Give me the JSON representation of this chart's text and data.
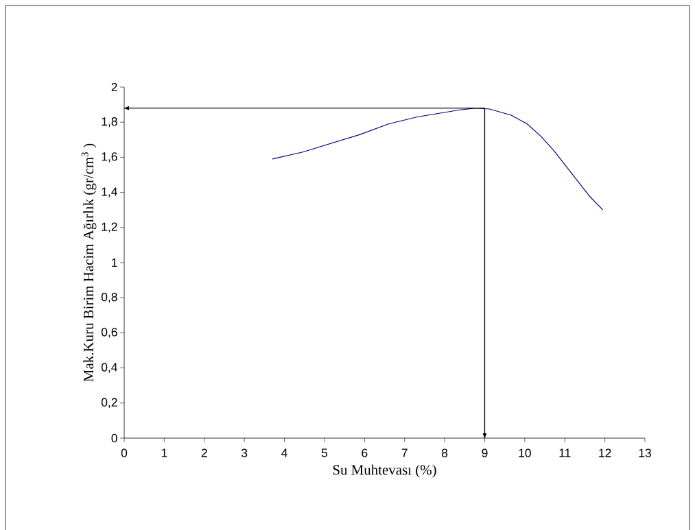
{
  "chart_data": {
    "type": "line",
    "xlabel": "Su Muhtevası (%)",
    "ylabel": "Mak.Kuru Birim Hacim Ağırlık (gr/cm$^{3}$ )",
    "x": [
      3.7,
      4.46,
      5.89,
      6.6,
      7.32,
      8.38,
      8.78,
      9.12,
      9.66,
      10.06,
      10.4,
      10.72,
      11.61,
      11.95
    ],
    "series": [
      {
        "color": "#000080",
        "values": [
          1.59,
          1.63,
          1.73,
          1.79,
          1.83,
          1.87,
          1.88,
          1.875,
          1.84,
          1.79,
          1.72,
          1.64,
          1.38,
          1.3
        ]
      }
    ],
    "xlim": [
      0,
      13
    ],
    "xticks": [
      0,
      1,
      2,
      3,
      4,
      5,
      6,
      7,
      8,
      9,
      10,
      11,
      12,
      13
    ],
    "ylim": [
      0,
      2
    ],
    "yticks": [
      {
        "value": 0,
        "label": "0"
      },
      {
        "value": 0.2,
        "label": "0,2"
      },
      {
        "value": 0.4,
        "label": "0,4"
      },
      {
        "value": 0.6,
        "label": "0,6"
      },
      {
        "value": 0.8,
        "label": "0,8"
      },
      {
        "value": 1,
        "label": "1"
      },
      {
        "value": 1.2,
        "label": "1,2"
      },
      {
        "value": 1.4,
        "label": "1,4"
      },
      {
        "value": 1.6,
        "label": "1,6"
      },
      {
        "value": 1.8,
        "label": "1,8"
      },
      {
        "value": 2,
        "label": "2"
      }
    ],
    "ref_lines": [
      {
        "axis": "y",
        "value": 1.88,
        "color": "#000000"
      },
      {
        "axis": "x",
        "value": 9,
        "color": "#000000"
      }
    ],
    "grid": false
  }
}
